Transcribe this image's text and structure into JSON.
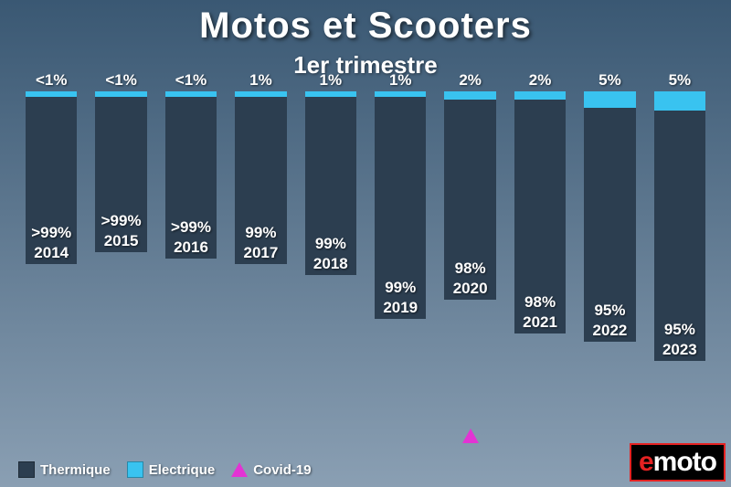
{
  "chart": {
    "type": "stacked-bar",
    "title": "Motos et Scooters",
    "title_fontsize": 40,
    "subtitle": "1er trimestre",
    "subtitle_fontsize": 26,
    "background_gradient_top": "#3a5873",
    "background_gradient_bottom": "#8a9fb3",
    "bar_width_pct": 78,
    "label_fontsize": 17,
    "year_fontsize": 17,
    "y_max": 120,
    "series": {
      "bottom": {
        "name": "Thermique",
        "color": "#2c3e50"
      },
      "top": {
        "name": "Electrique",
        "color": "#39c3f0"
      },
      "marker": {
        "name": "Covid-19",
        "color": "#e333d4"
      }
    },
    "bars": [
      {
        "year": "2014",
        "bottom_h": 60,
        "top_h": 2,
        "top_label": "<1%",
        "bot_label": ">99%",
        "marker": false
      },
      {
        "year": "2015",
        "bottom_h": 56,
        "top_h": 2,
        "top_label": "<1%",
        "bot_label": ">99%",
        "marker": false
      },
      {
        "year": "2016",
        "bottom_h": 58,
        "top_h": 2,
        "top_label": "<1%",
        "bot_label": ">99%",
        "marker": false
      },
      {
        "year": "2017",
        "bottom_h": 60,
        "top_h": 2,
        "top_label": "1%",
        "bot_label": "99%",
        "marker": false
      },
      {
        "year": "2018",
        "bottom_h": 64,
        "top_h": 2,
        "top_label": "1%",
        "bot_label": "99%",
        "marker": false
      },
      {
        "year": "2019",
        "bottom_h": 80,
        "top_h": 2,
        "top_label": "1%",
        "bot_label": "99%",
        "marker": false
      },
      {
        "year": "2020",
        "bottom_h": 72,
        "top_h": 3,
        "top_label": "2%",
        "bot_label": "98%",
        "marker": true
      },
      {
        "year": "2021",
        "bottom_h": 84,
        "top_h": 3,
        "top_label": "2%",
        "bot_label": "98%",
        "marker": false
      },
      {
        "year": "2022",
        "bottom_h": 84,
        "top_h": 6,
        "top_label": "5%",
        "bot_label": "95%",
        "marker": false
      },
      {
        "year": "2023",
        "bottom_h": 90,
        "top_h": 7,
        "top_label": "5%",
        "bot_label": "95%",
        "marker": false
      }
    ]
  },
  "legend": {
    "fontsize": 15,
    "items": [
      {
        "kind": "swatch",
        "label_path": "chart.series.bottom.name",
        "color_path": "chart.series.bottom.color"
      },
      {
        "kind": "swatch",
        "label_path": "chart.series.top.name",
        "color_path": "chart.series.top.color"
      },
      {
        "kind": "triangle",
        "label_path": "chart.series.marker.name",
        "color_path": "chart.series.marker.color"
      }
    ]
  },
  "logo": {
    "text_e": "e",
    "text_rest": "moto",
    "fontsize": 30,
    "bg": "#000000",
    "border": "#e42222",
    "e_color": "#e42222",
    "rest_color": "#ffffff"
  }
}
